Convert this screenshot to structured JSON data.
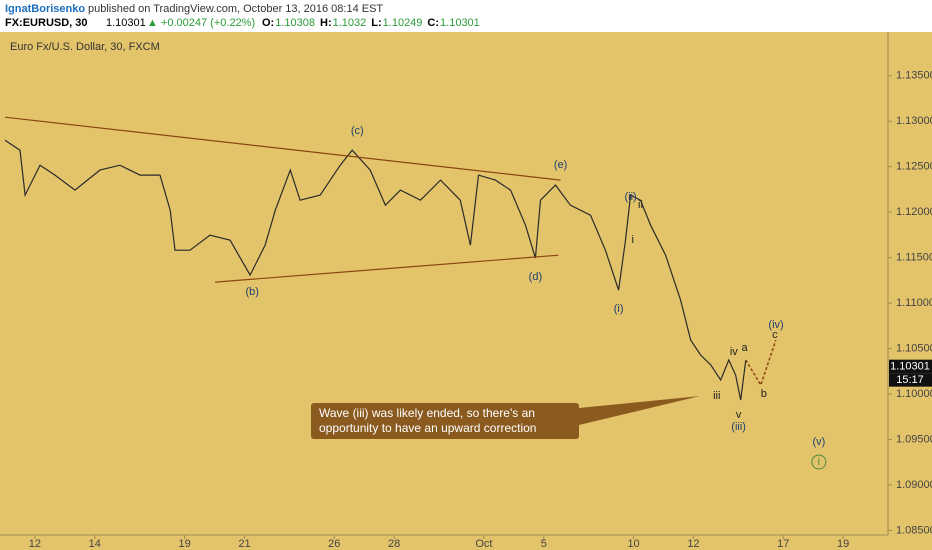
{
  "header": {
    "author": "IgnatBorisenko",
    "published": "published on TradingView.com, October 13, 2016 08:14 EST",
    "symbol": "FX:EURUSD, 30",
    "last": 1.10301,
    "change": "▲ +0.00247 (+0.22%)",
    "quote": [
      {
        "label": "O:",
        "value": 1.10308
      },
      {
        "label": "H:",
        "value": 1.1032
      },
      {
        "label": "L:",
        "value": 1.10249
      },
      {
        "label": "C:",
        "value": 1.10301
      }
    ]
  },
  "chart_data": {
    "type": "line",
    "title": "Euro Fx/U.S. Dollar, 30, FXCM",
    "callout": "Wave (iii) was likely ended, so there's an opportunity to have an upward correction",
    "xlim": [
      -1,
      28.5
    ],
    "ylim": [
      1.0845,
      1.1397
    ],
    "xticks": [
      {
        "value": 0,
        "label": "12"
      },
      {
        "value": 2,
        "label": "14"
      },
      {
        "value": 5,
        "label": "19"
      },
      {
        "value": 7,
        "label": "21"
      },
      {
        "value": 10,
        "label": "26"
      },
      {
        "value": 12,
        "label": "28"
      },
      {
        "value": 15,
        "label": "Oct"
      },
      {
        "value": 17,
        "label": "5"
      },
      {
        "value": 20,
        "label": "10"
      },
      {
        "value": 22,
        "label": "12"
      },
      {
        "value": 25,
        "label": "17"
      },
      {
        "value": 27,
        "label": "19"
      }
    ],
    "yticks": [
      {
        "value": 1.135,
        "label": "1.13500"
      },
      {
        "value": 1.13,
        "label": "1.13000"
      },
      {
        "value": 1.125,
        "label": "1.12500"
      },
      {
        "value": 1.12,
        "label": "1.12000"
      },
      {
        "value": 1.115,
        "label": "1.11500"
      },
      {
        "value": 1.11,
        "label": "1.11000"
      },
      {
        "value": 1.105,
        "label": "1.10500"
      },
      {
        "value": 1.1,
        "label": "1.10000"
      },
      {
        "value": 1.095,
        "label": "1.09500"
      },
      {
        "value": 1.09,
        "label": "1.09000"
      },
      {
        "value": 1.085,
        "label": "1.08500"
      }
    ],
    "last_price": 1.10301,
    "countdown": "15:17",
    "series": [
      {
        "color": "#2b2b2b",
        "style": "solid",
        "x": [
          -1.0,
          -0.5,
          -0.33,
          0.17,
          0.67,
          1.34,
          2.17,
          2.84,
          3.51,
          4.18,
          4.52,
          4.68,
          5.18,
          5.85,
          6.52,
          7.19,
          7.69,
          8.03,
          8.53,
          8.86,
          9.53,
          10.2,
          10.6,
          11.2,
          11.71,
          12.21,
          12.88,
          13.55,
          14.21,
          14.55,
          14.82,
          15.38,
          15.89,
          16.39,
          16.72,
          16.89,
          17.39,
          17.89,
          18.56,
          19.06,
          19.5,
          19.73,
          19.9,
          20.23,
          20.57,
          21.07,
          21.57,
          21.91,
          22.24,
          22.58,
          22.91,
          23.18,
          23.41,
          23.58,
          23.75
        ],
        "values": [
          1.12791,
          1.12681,
          1.12187,
          1.12516,
          1.12407,
          1.12242,
          1.12462,
          1.12516,
          1.12407,
          1.12407,
          1.12022,
          1.11582,
          1.11582,
          1.11747,
          1.11692,
          1.11308,
          1.11637,
          1.12022,
          1.12462,
          1.12132,
          1.12187,
          1.12516,
          1.12681,
          1.12462,
          1.12077,
          1.12242,
          1.12132,
          1.12352,
          1.12132,
          1.11637,
          1.12407,
          1.12352,
          1.12242,
          1.11857,
          1.11495,
          1.12132,
          1.12297,
          1.12077,
          1.11967,
          1.11582,
          1.11143,
          1.11692,
          1.12187,
          1.12132,
          1.11857,
          1.11527,
          1.11033,
          1.10593,
          1.10429,
          1.10319,
          1.10154,
          1.10374,
          1.10209,
          1.09934,
          1.10374
        ]
      },
      {
        "color": "#8b4513",
        "style": "dashed",
        "x": [
          23.75,
          24.25,
          24.75
        ],
        "values": [
          1.10374,
          1.10099,
          1.10593
        ]
      },
      {
        "color": "#8b4513",
        "style": "solid",
        "x": [
          -1.0,
          17.56
        ],
        "values": [
          1.13044,
          1.12352
        ]
      },
      {
        "color": "#8b4513",
        "style": "solid",
        "x": [
          6.02,
          17.49
        ],
        "values": [
          1.11231,
          1.11527
        ]
      }
    ],
    "annotations": [
      {
        "text": "(c)",
        "x": 10.77,
        "y": 1.1289,
        "color": "#1f3f6e"
      },
      {
        "text": "(b)",
        "x": 7.26,
        "y": 1.11121,
        "color": "#1f3f6e"
      },
      {
        "text": "(e)",
        "x": 17.56,
        "y": 1.12516,
        "color": "#1f3f6e"
      },
      {
        "text": "(d)",
        "x": 16.72,
        "y": 1.11286,
        "color": "#1f3f6e"
      },
      {
        "text": "(i)",
        "x": 19.5,
        "y": 1.10934,
        "color": "#1f3f6e"
      },
      {
        "text": "(ii)",
        "x": 19.9,
        "y": 1.12165,
        "color": "#1f3f6e"
      },
      {
        "text": "ii",
        "x": 20.23,
        "y": 1.12077,
        "color": "#222"
      },
      {
        "text": "i",
        "x": 19.97,
        "y": 1.11692,
        "color": "#222"
      },
      {
        "text": "iii",
        "x": 22.78,
        "y": 1.09978,
        "color": "#222"
      },
      {
        "text": "iv",
        "x": 23.35,
        "y": 1.10462,
        "color": "#222"
      },
      {
        "text": "a",
        "x": 23.71,
        "y": 1.10506,
        "color": "#222"
      },
      {
        "text": "v",
        "x": 23.51,
        "y": 1.09769,
        "color": "#222"
      },
      {
        "text": "(iii)",
        "x": 23.51,
        "y": 1.09637,
        "color": "#1f3f6e"
      },
      {
        "text": "b",
        "x": 24.35,
        "y": 1.1,
        "color": "#222"
      },
      {
        "text": "c",
        "x": 24.72,
        "y": 1.10648,
        "color": "#222"
      },
      {
        "text": "(iv)",
        "x": 24.76,
        "y": 1.10758,
        "color": "#1f3f6e"
      },
      {
        "text": "(v)",
        "x": 26.19,
        "y": 1.09473,
        "color": "#1f3f6e"
      },
      {
        "text": "i",
        "x": 26.19,
        "y": 1.09253,
        "color": "#4a8a3a",
        "circled": true
      }
    ]
  }
}
